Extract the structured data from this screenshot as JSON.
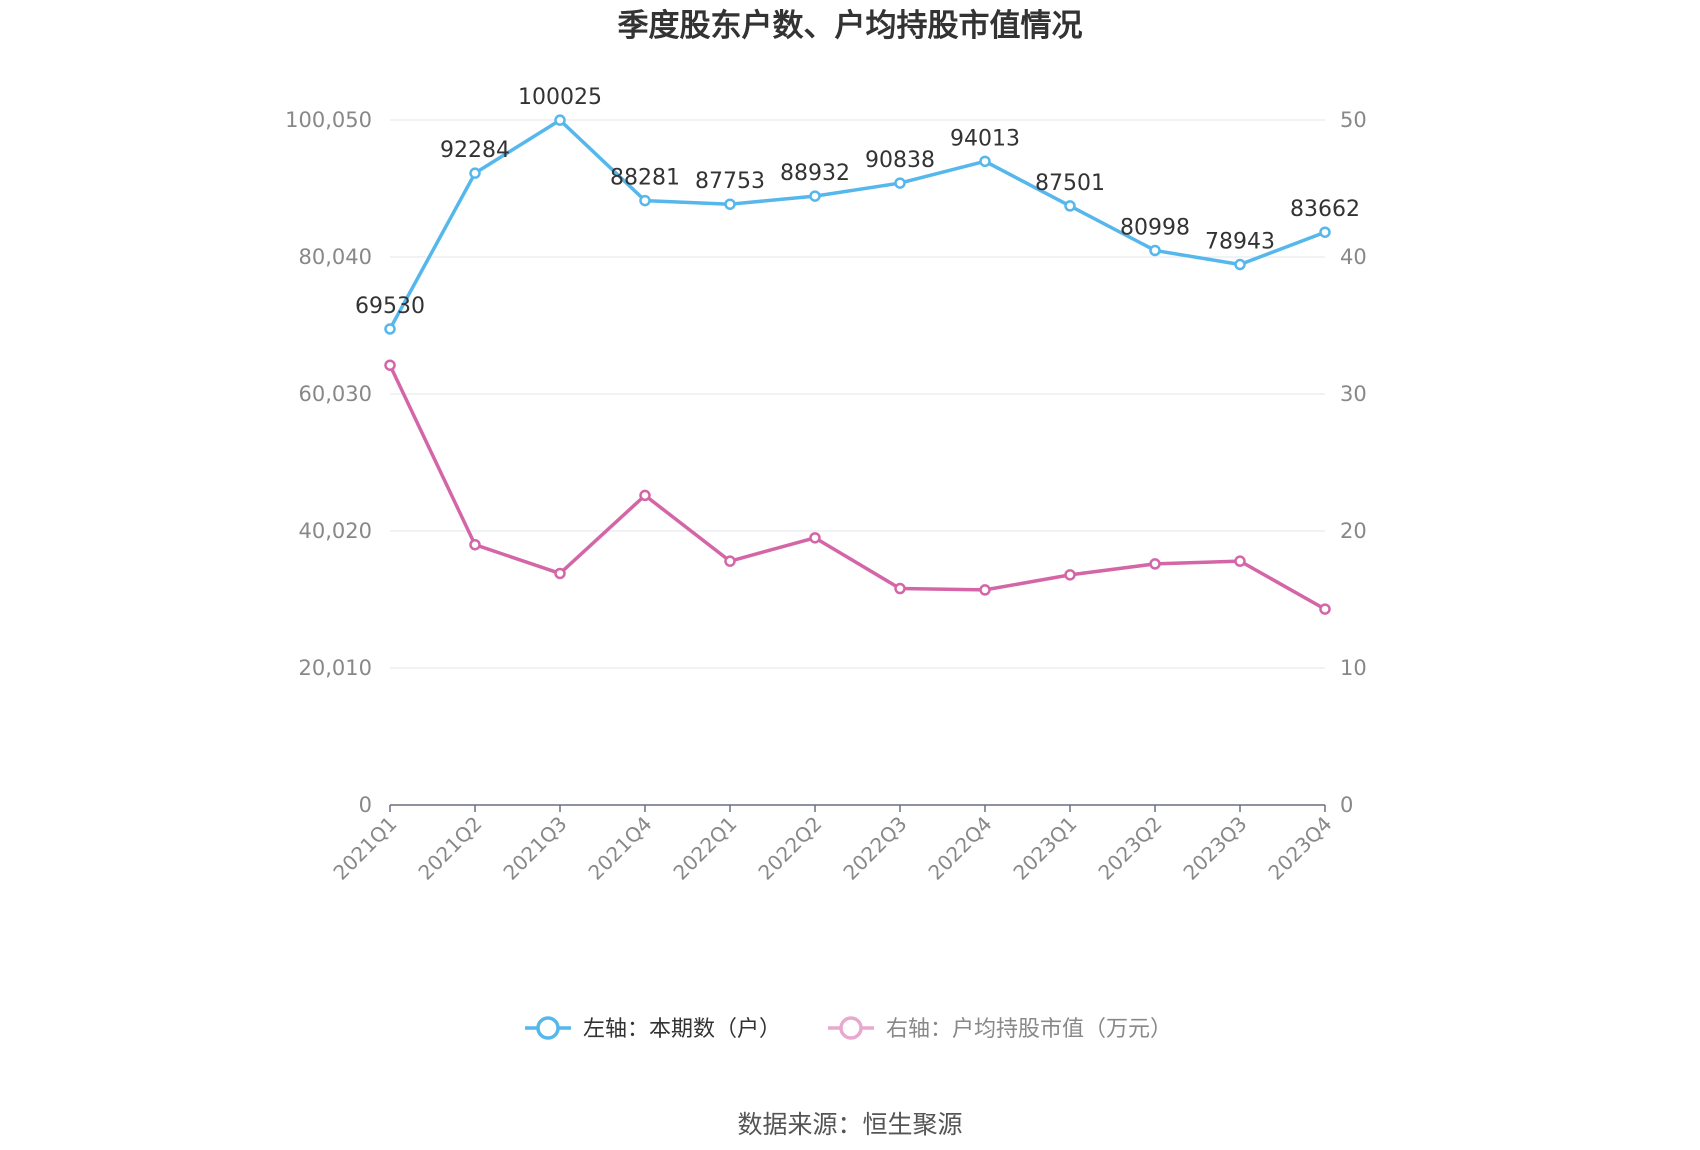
{
  "chart_data": {
    "type": "line",
    "title": "季度股东户数、户均持股市值情况",
    "categories": [
      "2021Q1",
      "2021Q2",
      "2021Q3",
      "2021Q4",
      "2022Q1",
      "2022Q2",
      "2022Q3",
      "2022Q4",
      "2023Q1",
      "2023Q2",
      "2023Q3",
      "2023Q4"
    ],
    "y_left": {
      "range": [
        0,
        100050
      ],
      "ticks": [
        0,
        20010,
        40020,
        60030,
        80040,
        100050
      ],
      "tick_labels": [
        "0",
        "20,010",
        "40,020",
        "60,030",
        "80,040",
        "100,050"
      ]
    },
    "y_right": {
      "range": [
        0,
        50
      ],
      "ticks": [
        0,
        10,
        20,
        30,
        40,
        50
      ],
      "tick_labels": [
        "0",
        "10",
        "20",
        "30",
        "40",
        "50"
      ]
    },
    "series": [
      {
        "name": "左轴：本期数（户）",
        "axis": "left",
        "color": "#55b7ec",
        "values": [
          69530,
          92284,
          100025,
          88281,
          87753,
          88932,
          90838,
          94013,
          87501,
          80998,
          78943,
          83662
        ],
        "labels": [
          "69530",
          "92284",
          "100025",
          "88281",
          "87753",
          "88932",
          "90838",
          "94013",
          "87501",
          "80998",
          "78943",
          "83662"
        ]
      },
      {
        "name": "右轴：户均持股市值（万元）",
        "axis": "right",
        "color": "#d466a8",
        "legend_color": "#e8a8cf",
        "values": [
          32.1,
          19.0,
          16.9,
          22.6,
          17.8,
          19.5,
          15.8,
          15.7,
          16.8,
          17.6,
          17.8,
          14.3
        ]
      }
    ],
    "grid": true,
    "legend_position": "bottom"
  },
  "footer": {
    "source": "数据来源：恒生聚源"
  }
}
